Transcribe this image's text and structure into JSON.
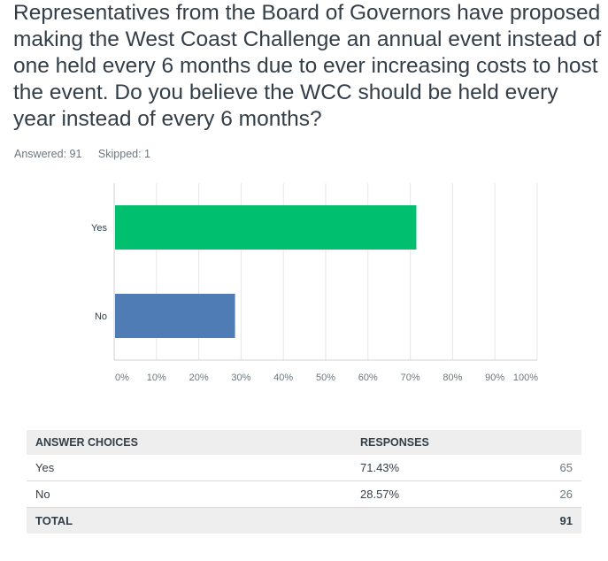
{
  "question": "Representatives from the Board of Governors have proposed making the West Coast Challenge an annual event instead of one held every 6 months due to ever increasing costs to host the event. Do you believe the WCC should be held every year instead of every 6 months?",
  "stats": {
    "answered": "Answered: 91",
    "skipped": "Skipped: 1"
  },
  "chart_data": {
    "type": "bar",
    "orientation": "horizontal",
    "categories": [
      "Yes",
      "No"
    ],
    "values": [
      71.43,
      28.57
    ],
    "colors": [
      "#00bf6f",
      "#507cb6"
    ],
    "xlim": [
      0,
      100
    ],
    "xticks": [
      "0%",
      "10%",
      "20%",
      "30%",
      "40%",
      "50%",
      "60%",
      "70%",
      "80%",
      "90%",
      "100%"
    ],
    "grid": true
  },
  "table": {
    "headers": {
      "choices": "ANSWER CHOICES",
      "responses": "RESPONSES"
    },
    "rows": [
      {
        "choice": "Yes",
        "percent": "71.43%",
        "count": "65"
      },
      {
        "choice": "No",
        "percent": "28.57%",
        "count": "26"
      }
    ],
    "total": {
      "label": "TOTAL",
      "count": "91"
    }
  }
}
